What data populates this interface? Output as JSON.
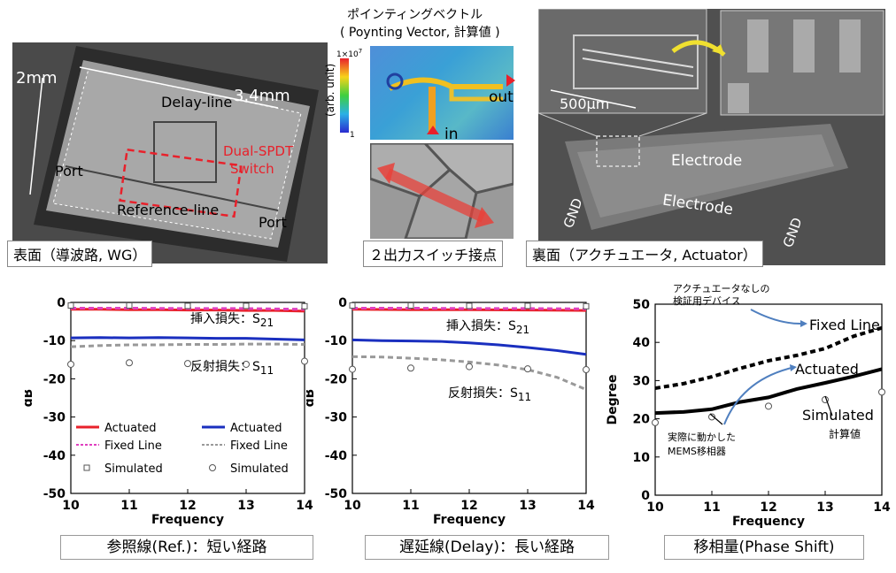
{
  "panels": {
    "surface": {
      "dim_h": "2mm",
      "dim_w": "3.4mm",
      "delay_line": "Delay-line",
      "switch_label_1": "Dual-SPDT",
      "switch_label_2": "Switch",
      "port_left": "Port",
      "port_right": "Port",
      "reference_line": "Reference-line",
      "caption": "表面（導波路, WG）"
    },
    "poynting": {
      "title": "ポインティングベクトル",
      "subtitle": "( Poynting Vector, 計算値 )",
      "scale_max": "1×10",
      "scale_exp": "7",
      "scale_min": "1",
      "unit": "(arb. unit)",
      "out": "out",
      "in": "in"
    },
    "switch": {
      "caption": "２出力スイッチ接点"
    },
    "backside": {
      "scale": "500μm",
      "gnd_left": "GND",
      "gnd_right": "GND",
      "electrode_1": "Electrode",
      "electrode_2": "Electrode",
      "caption": "裏面（アクチュエータ, Actuator）"
    }
  },
  "bottom_captions": {
    "ref": "参照線(Ref.)：短い経路",
    "delay": "遅延線(Delay)：長い経路",
    "phase": "移相量(Phase Shift)"
  },
  "chart_data": [
    {
      "type": "line",
      "xlabel": "Frequency",
      "ylabel": "dB",
      "xlim": [
        10,
        14
      ],
      "ylim": [
        -50,
        0
      ],
      "xticks": [
        "10",
        "11",
        "12",
        "13",
        "14"
      ],
      "yticks": [
        "0",
        "-10",
        "-20",
        "-30",
        "-40",
        "-50"
      ],
      "annotations": {
        "s21_prefix": "挿入損失：S",
        "s21_sub": "21",
        "s11_prefix": "反射損失：S",
        "s11_sub": "11"
      },
      "legend": [
        "Actuated",
        "Fixed Line",
        "Simulated",
        "Actuated",
        "Fixed Line",
        "Simulated"
      ],
      "series": [
        {
          "name": "Actuated",
          "color": "#e8212b",
          "style": "solid",
          "x": [
            10,
            10.5,
            11,
            11.5,
            12,
            12.5,
            13,
            13.5,
            14
          ],
          "y": [
            -1.8,
            -1.8,
            -1.9,
            -1.9,
            -2.0,
            -2.0,
            -2.1,
            -2.1,
            -2.3
          ]
        },
        {
          "name": "Fixed Line",
          "color": "#e040c0",
          "style": "dash",
          "x": [
            10,
            11,
            12,
            13,
            14
          ],
          "y": [
            -1.5,
            -1.5,
            -1.6,
            -1.6,
            -1.8
          ]
        },
        {
          "name": "Simulated",
          "color": "#555555",
          "style": "square",
          "x": [
            10,
            11,
            12,
            13,
            14
          ],
          "y": [
            -0.8,
            -0.8,
            -0.9,
            -0.9,
            -1.0
          ]
        },
        {
          "name": "Actuated",
          "color": "#1a2fbf",
          "style": "solid",
          "x": [
            10,
            10.5,
            11,
            11.5,
            12,
            12.5,
            13,
            13.5,
            14
          ],
          "y": [
            -9.3,
            -9.2,
            -9.3,
            -9.2,
            -9.3,
            -9.4,
            -9.4,
            -9.6,
            -9.8
          ]
        },
        {
          "name": "Fixed Line",
          "color": "#999999",
          "style": "dash",
          "x": [
            10,
            10.5,
            11,
            11.5,
            12,
            12.5,
            13,
            13.5,
            14
          ],
          "y": [
            -11.6,
            -11.3,
            -11.1,
            -11.1,
            -11.0,
            -11.0,
            -10.9,
            -10.9,
            -11.0
          ]
        },
        {
          "name": "Simulated",
          "color": "#555555",
          "style": "circle",
          "x": [
            10,
            11,
            12,
            13,
            14
          ],
          "y": [
            -16.2,
            -15.8,
            -16.0,
            -16.2,
            -15.4
          ]
        }
      ]
    },
    {
      "type": "line",
      "xlabel": "Frequency",
      "ylabel": "dB",
      "xlim": [
        10,
        14
      ],
      "ylim": [
        -50,
        0
      ],
      "xticks": [
        "10",
        "11",
        "12",
        "13",
        "14"
      ],
      "yticks": [
        "0",
        "-10",
        "-20",
        "-30",
        "-40",
        "-50"
      ],
      "annotations": {
        "s21_prefix": "挿入損失：S",
        "s21_sub": "21",
        "s11_prefix": "反射損失：S",
        "s11_sub": "11"
      },
      "series": [
        {
          "name": "Actuated",
          "color": "#e8212b",
          "style": "solid",
          "x": [
            10,
            11,
            12,
            13,
            14
          ],
          "y": [
            -1.8,
            -1.9,
            -1.9,
            -2.0,
            -2.1
          ]
        },
        {
          "name": "Fixed Line",
          "color": "#e040c0",
          "style": "dash",
          "x": [
            10,
            11,
            12,
            13,
            14
          ],
          "y": [
            -1.5,
            -1.5,
            -1.6,
            -1.6,
            -1.7
          ]
        },
        {
          "name": "Simulated",
          "color": "#555555",
          "style": "square",
          "x": [
            10,
            11,
            12,
            13,
            14
          ],
          "y": [
            -0.8,
            -0.8,
            -0.9,
            -0.9,
            -1.0
          ]
        },
        {
          "name": "Actuated",
          "color": "#1a2fbf",
          "style": "solid",
          "x": [
            10,
            10.5,
            11,
            11.5,
            12,
            12.5,
            13,
            13.5,
            14
          ],
          "y": [
            -9.8,
            -10.0,
            -10.1,
            -10.2,
            -10.6,
            -11.1,
            -11.8,
            -12.6,
            -13.6
          ]
        },
        {
          "name": "Fixed Line",
          "color": "#999999",
          "style": "dash",
          "x": [
            10,
            10.5,
            11,
            11.5,
            12,
            12.5,
            13,
            13.5,
            14
          ],
          "y": [
            -14.2,
            -14.3,
            -14.6,
            -15.0,
            -15.6,
            -16.4,
            -17.6,
            -19.6,
            -22.8
          ]
        },
        {
          "name": "Simulated",
          "color": "#555555",
          "style": "circle",
          "x": [
            10,
            11,
            12,
            13,
            14
          ],
          "y": [
            -17.5,
            -17.2,
            -16.8,
            -17.4,
            -17.6
          ]
        }
      ]
    },
    {
      "type": "line",
      "xlabel": "Frequency",
      "ylabel": "Degree",
      "xlim": [
        10,
        14
      ],
      "ylim": [
        0,
        50
      ],
      "xticks": [
        "10",
        "11",
        "12",
        "13",
        "14"
      ],
      "yticks": [
        "0",
        "10",
        "20",
        "30",
        "40",
        "50"
      ],
      "annotations": {
        "note_top_1": "アクチュエータなしの",
        "note_top_2": "検証用デバイス",
        "fixed": "Fixed Line",
        "actuated": "Actuated",
        "simulated": "Simulated",
        "simulated_jp": "計算値",
        "note_bottom_1": "実際に動かした",
        "note_bottom_2": "MEMS移相器"
      },
      "series": [
        {
          "name": "Fixed Line",
          "color": "#000000",
          "style": "dash",
          "x": [
            10,
            10.5,
            11,
            11.5,
            12,
            12.5,
            13,
            13.5,
            14
          ],
          "y": [
            28,
            29.2,
            31,
            33.2,
            35.2,
            36.6,
            38.4,
            41.6,
            43.8
          ]
        },
        {
          "name": "Actuated",
          "color": "#000000",
          "style": "solid",
          "x": [
            10,
            10.5,
            11,
            11.5,
            12,
            12.5,
            13,
            13.5,
            14
          ],
          "y": [
            21.5,
            21.8,
            22.5,
            24.4,
            25.6,
            27.8,
            29.4,
            31.1,
            33
          ]
        },
        {
          "name": "Simulated",
          "color": "#555555",
          "style": "circle",
          "x": [
            10,
            11,
            12,
            13,
            14
          ],
          "y": [
            19,
            20.5,
            23.3,
            25,
            27
          ]
        }
      ]
    }
  ]
}
